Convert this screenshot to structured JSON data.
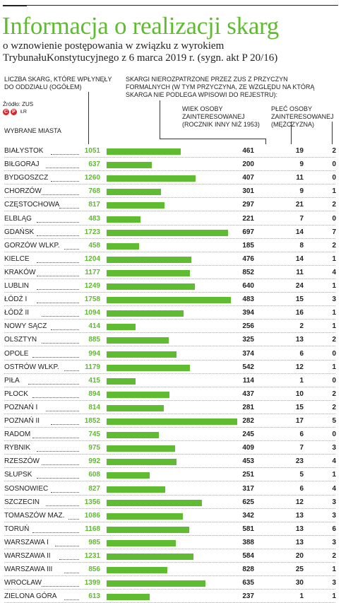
{
  "header": {
    "title": "Informacja o realizacji skarg",
    "subtitle": "o wznowienie postępowania w związku z wyrokiem TrybunałuKonstytucyjnego z 6 marca 2019 r. (sygn. akt P 20/16)"
  },
  "labels": {
    "total_col": "LICZBA SKARG, KTÓRE WPŁYNĘŁY DO ODDZIAŁU (OGÓŁEM)",
    "source": "Źródło: ZUS",
    "logo_text": "ŁR",
    "cities_col": "WYBRANE MIASTA",
    "unprocessed_col": "SKARGI NIEROZPATRZONE PRZEZ ZUS Z PRZYCZYN FORMALNYCH (W TYM PRZYCZYNA, ZE WZGLĘDU NA KTÓRĄ SKARGA NIE PODLEGA WPISOWI DO REJESTRU):",
    "age_col": "WIEK OSOBY ZAINTERESOWANEJ (ROCZNIK INNY NIŻ 1953)",
    "sex_col": "PŁEĆ OSOBY ZAINTERESOWANEJ (MĘŻCZYZNA)"
  },
  "colors": {
    "accent": "#5fbb2f",
    "logo": "#d8232a"
  },
  "chart_data": {
    "type": "table",
    "title": "Informacja o realizacji skarg",
    "columns": [
      "WYBRANE MIASTA",
      "LICZBA SKARG, KTÓRE WPŁYNĘŁY DO ODDZIAŁU (OGÓŁEM)",
      "SKARGI NIEROZPATRZONE PRZEZ ZUS Z PRZYCZYN FORMALNYCH",
      "WIEK OSOBY ZAINTERESOWANEJ (ROCZNIK INNY NIŻ 1953)",
      "PŁEĆ OSOBY ZAINTERESOWANEJ (MĘŻCZYZNA)"
    ],
    "bar_column": "LICZBA SKARG, KTÓRE WPŁYNĘŁY DO ODDZIAŁU (OGÓŁEM)",
    "rows": [
      {
        "city": "BIAŁYSTOK",
        "total": 1051,
        "unprocessed": 461,
        "age": 19,
        "sex": 2
      },
      {
        "city": "BIŁGORAJ",
        "total": 637,
        "unprocessed": 200,
        "age": 9,
        "sex": 0
      },
      {
        "city": "BYDGOSZCZ",
        "total": 1260,
        "unprocessed": 407,
        "age": 11,
        "sex": 0
      },
      {
        "city": "CHORZÓW",
        "total": 768,
        "unprocessed": 301,
        "age": 9,
        "sex": 1
      },
      {
        "city": "CZĘSTOCHOWA",
        "total": 817,
        "unprocessed": 297,
        "age": 21,
        "sex": 2
      },
      {
        "city": "ELBLĄG",
        "total": 483,
        "unprocessed": 221,
        "age": 7,
        "sex": 0
      },
      {
        "city": "GDAŃSK",
        "total": 1723,
        "unprocessed": 697,
        "age": 14,
        "sex": 7
      },
      {
        "city": "GORZÓW WLKP.",
        "total": 458,
        "unprocessed": 185,
        "age": 8,
        "sex": 2
      },
      {
        "city": "KIELCE",
        "total": 1204,
        "unprocessed": 476,
        "age": 14,
        "sex": 1
      },
      {
        "city": "KRAKÓW",
        "total": 1177,
        "unprocessed": 852,
        "age": 11,
        "sex": 4
      },
      {
        "city": "LUBLIN",
        "total": 1249,
        "unprocessed": 640,
        "age": 24,
        "sex": 1
      },
      {
        "city": "ŁÓDŹ I",
        "total": 1758,
        "unprocessed": 483,
        "age": 15,
        "sex": 3
      },
      {
        "city": "ŁÓDŹ II",
        "total": 1094,
        "unprocessed": 394,
        "age": 16,
        "sex": 1
      },
      {
        "city": "NOWY SĄCZ",
        "total": 414,
        "unprocessed": 256,
        "age": 2,
        "sex": 1
      },
      {
        "city": "OLSZTYN",
        "total": 885,
        "unprocessed": 325,
        "age": 13,
        "sex": 2
      },
      {
        "city": "OPOLE",
        "total": 994,
        "unprocessed": 374,
        "age": 6,
        "sex": 0
      },
      {
        "city": "OSTRÓW WLKP.",
        "total": 1179,
        "unprocessed": 542,
        "age": 12,
        "sex": 1
      },
      {
        "city": "PIŁA",
        "total": 415,
        "unprocessed": 114,
        "age": 1,
        "sex": 0
      },
      {
        "city": "PŁOCK",
        "total": 894,
        "unprocessed": 437,
        "age": 10,
        "sex": 2
      },
      {
        "city": "POZNAŃ I",
        "total": 814,
        "unprocessed": 281,
        "age": 15,
        "sex": 2
      },
      {
        "city": "POZNAŃ II",
        "total": 1852,
        "unprocessed": 282,
        "age": 17,
        "sex": 5
      },
      {
        "city": "RADOM",
        "total": 745,
        "unprocessed": 245,
        "age": 6,
        "sex": 0
      },
      {
        "city": "RYBNIK",
        "total": 975,
        "unprocessed": 409,
        "age": 7,
        "sex": 3
      },
      {
        "city": "RZESZÓW",
        "total": 992,
        "unprocessed": 453,
        "age": 23,
        "sex": 4
      },
      {
        "city": "SŁUPSK",
        "total": 608,
        "unprocessed": 251,
        "age": 5,
        "sex": 1
      },
      {
        "city": "SOSNOWIEC",
        "total": 827,
        "unprocessed": 317,
        "age": 6,
        "sex": 4
      },
      {
        "city": "SZCZECIN",
        "total": 1356,
        "unprocessed": 625,
        "age": 12,
        "sex": 3
      },
      {
        "city": "TOMASZÓW MAZ.",
        "total": 1086,
        "unprocessed": 342,
        "age": 13,
        "sex": 3
      },
      {
        "city": "TORUŃ",
        "total": 1168,
        "unprocessed": 581,
        "age": 13,
        "sex": 6
      },
      {
        "city": "WARSZAWA I",
        "total": 985,
        "unprocessed": 388,
        "age": 13,
        "sex": 3
      },
      {
        "city": "WARSZAWA II",
        "total": 1231,
        "unprocessed": 584,
        "age": 20,
        "sex": 2
      },
      {
        "city": "WARSZAWA III",
        "total": 856,
        "unprocessed": 828,
        "age": 25,
        "sex": 1
      },
      {
        "city": "WROCŁAW",
        "total": 1399,
        "unprocessed": 635,
        "age": 30,
        "sex": 3
      },
      {
        "city": "ZIELONA GÓRA",
        "total": 613,
        "unprocessed": 237,
        "age": 1,
        "sex": 1
      }
    ]
  }
}
